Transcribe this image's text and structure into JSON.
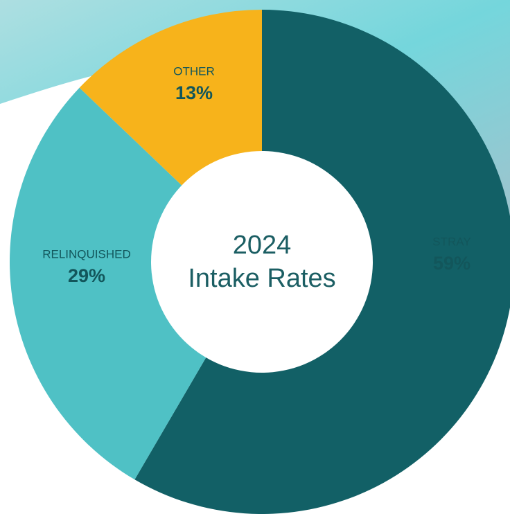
{
  "chart_data": {
    "type": "donut",
    "title_lines": [
      "2024",
      "Intake Rates"
    ],
    "categories": [
      "STRAY",
      "RELINQUISHED",
      "OTHER"
    ],
    "values": [
      59,
      29,
      13
    ],
    "value_labels": [
      "59%",
      "29%",
      "13%"
    ],
    "colors": [
      "#126066",
      "#4fc1c5",
      "#f7b31b"
    ]
  }
}
